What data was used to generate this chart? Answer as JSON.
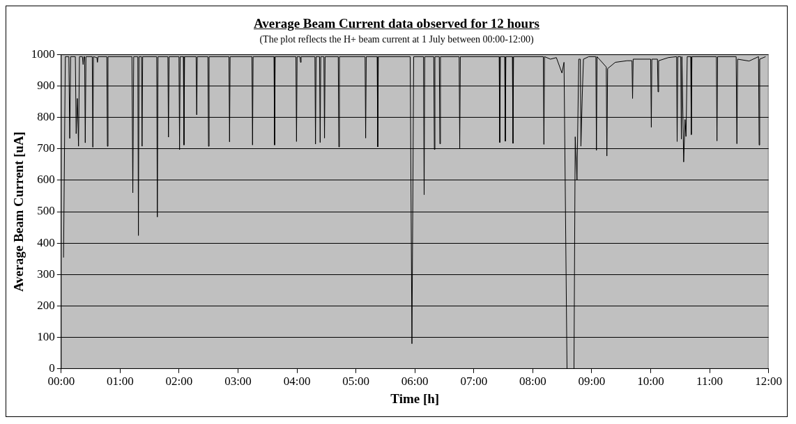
{
  "chart_data": {
    "type": "line",
    "title": "Average Beam Current data observed for 12 hours",
    "subtitle": "(The plot reflects the H+ beam current at 1 July between 00:00-12:00)",
    "xlabel": "Time [h]",
    "ylabel": "Average Beam Current [uA]",
    "xlim": [
      0,
      12
    ],
    "xticks": [
      {
        "value": 0,
        "label": "00:00"
      },
      {
        "value": 1,
        "label": "01:00"
      },
      {
        "value": 2,
        "label": "02:00"
      },
      {
        "value": 3,
        "label": "03:00"
      },
      {
        "value": 4,
        "label": "04:00"
      },
      {
        "value": 5,
        "label": "05:00"
      },
      {
        "value": 6,
        "label": "06:00"
      },
      {
        "value": 7,
        "label": "07:00"
      },
      {
        "value": 8,
        "label": "08:00"
      },
      {
        "value": 9,
        "label": "09:00"
      },
      {
        "value": 10,
        "label": "10:00"
      },
      {
        "value": 11,
        "label": "11:00"
      },
      {
        "value": 12,
        "label": "12:00"
      }
    ],
    "ylim": [
      0,
      1000
    ],
    "yticks": [
      0,
      100,
      200,
      300,
      400,
      500,
      600,
      700,
      800,
      900,
      1000
    ],
    "grid": "y",
    "legend": false,
    "marker": "none",
    "line_style": "solid",
    "series": [
      {
        "color": "#000000",
        "x": [
          0.04,
          0.07,
          0.13,
          0.145,
          0.16,
          0.24,
          0.254,
          0.274,
          0.294,
          0.31,
          0.36,
          0.372,
          0.385,
          0.398,
          0.408,
          0.42,
          0.527,
          0.537,
          0.547,
          0.605,
          0.615,
          0.625,
          0.774,
          0.784,
          0.794,
          1.2,
          1.215,
          1.23,
          1.3,
          1.31,
          1.32,
          1.362,
          1.372,
          1.382,
          1.62,
          1.631,
          1.642,
          1.81,
          1.82,
          1.83,
          1.998,
          2.008,
          2.018,
          2.073,
          2.083,
          2.093,
          2.289,
          2.299,
          2.309,
          2.489,
          2.499,
          2.509,
          2.846,
          2.856,
          2.866,
          3.236,
          3.246,
          3.256,
          3.61,
          3.62,
          3.63,
          3.982,
          3.992,
          4.002,
          4.05,
          4.06,
          4.07,
          4.304,
          4.314,
          4.324,
          4.383,
          4.393,
          4.403,
          4.457,
          4.467,
          4.477,
          4.7,
          4.71,
          4.72,
          5.155,
          5.165,
          5.175,
          5.36,
          5.37,
          5.38,
          5.92,
          5.95,
          5.98,
          6.147,
          6.157,
          6.167,
          6.32,
          6.33,
          6.34,
          6.414,
          6.424,
          6.434,
          6.751,
          6.761,
          6.771,
          7.43,
          7.44,
          7.45,
          7.524,
          7.534,
          7.544,
          7.654,
          7.664,
          7.674,
          8.179,
          8.189,
          8.199,
          8.3,
          8.4,
          8.495,
          8.53,
          8.581,
          8.699,
          8.72,
          8.75,
          8.78,
          8.807,
          8.817,
          8.84,
          8.86,
          8.95,
          9.07,
          9.08,
          9.09,
          9.247,
          9.257,
          9.27,
          9.4,
          9.6,
          9.683,
          9.693,
          9.703,
          10.0,
          10.011,
          10.02,
          10.115,
          10.125,
          10.135,
          10.3,
          10.44,
          10.449,
          10.46,
          10.51,
          10.521,
          10.53,
          10.56,
          10.583,
          10.6,
          10.62,
          10.68,
          10.689,
          10.7,
          11.115,
          11.125,
          11.135,
          11.45,
          11.463,
          11.475,
          11.67,
          11.83,
          11.84,
          11.85,
          11.95
        ],
        "values": [
          354,
          993,
          993,
          733,
          993,
          993,
          748,
          860,
          708,
          993,
          993,
          968,
          993,
          993,
          719,
          993,
          993,
          705,
          993,
          990,
          975,
          993,
          993,
          708,
          993,
          993,
          560,
          993,
          993,
          424,
          993,
          993,
          708,
          993,
          993,
          483,
          993,
          993,
          737,
          993,
          993,
          697,
          993,
          993,
          712,
          993,
          993,
          808,
          993,
          993,
          708,
          993,
          993,
          722,
          993,
          993,
          712,
          993,
          993,
          712,
          993,
          993,
          723,
          993,
          993,
          975,
          993,
          993,
          715,
          993,
          993,
          720,
          993,
          993,
          734,
          993,
          993,
          706,
          993,
          993,
          734,
          993,
          993,
          706,
          993,
          993,
          80,
          993,
          993,
          554,
          993,
          993,
          698,
          993,
          993,
          716,
          993,
          993,
          702,
          993,
          993,
          720,
          993,
          993,
          724,
          993,
          993,
          717,
          993,
          993,
          714,
          993,
          985,
          990,
          941,
          975,
          0,
          0,
          738,
          602,
          985,
          985,
          708,
          872,
          985,
          993,
          993,
          695,
          993,
          960,
          677,
          955,
          975,
          980,
          980,
          860,
          985,
          985,
          768,
          985,
          985,
          881,
          980,
          990,
          993,
          723,
          993,
          993,
          731,
          993,
          658,
          793,
          739,
          993,
          993,
          745,
          993,
          993,
          725,
          993,
          993,
          716,
          985,
          979,
          993,
          712,
          985,
          993
        ]
      }
    ]
  }
}
